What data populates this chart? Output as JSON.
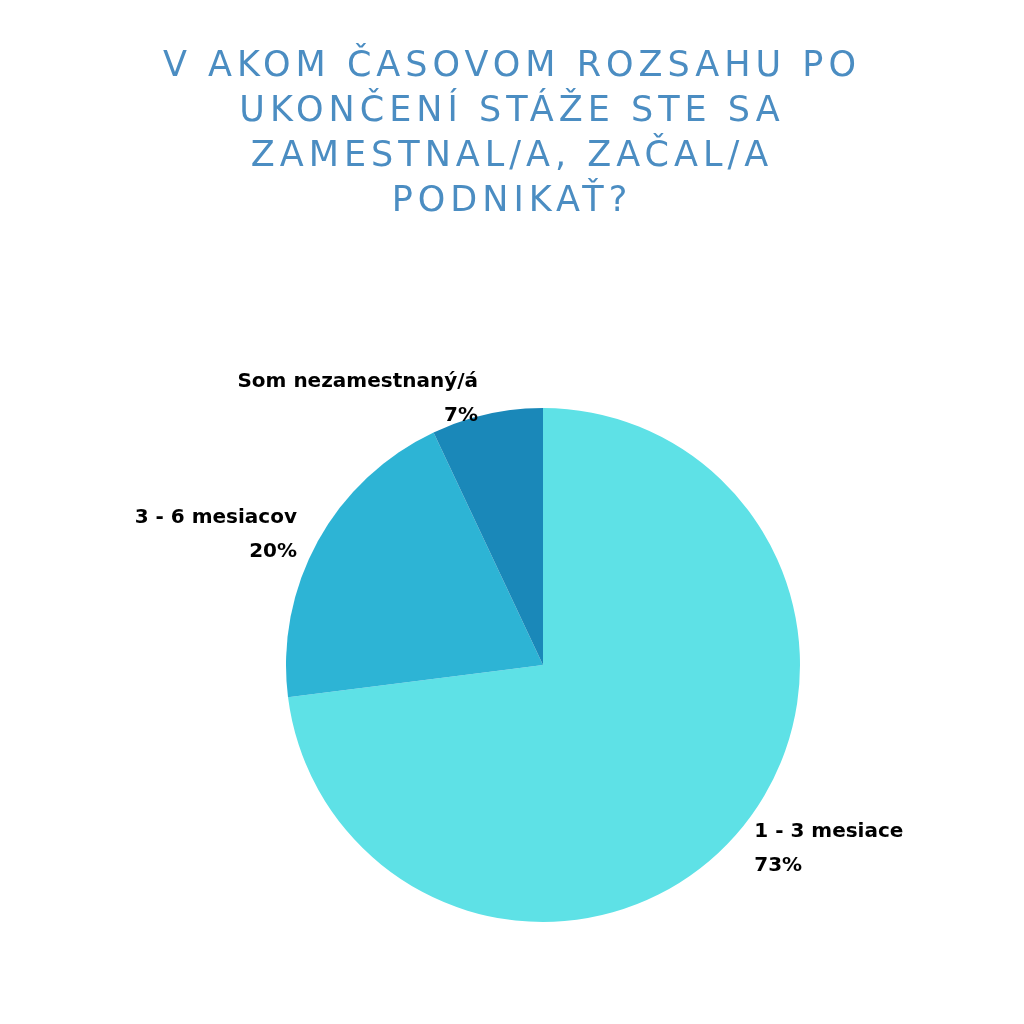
{
  "chart_data": {
    "type": "pie",
    "title": "V AKOM ČASOVOM ROZSAHU PO UKONČENÍ STÁŽE STE SA ZAMESTNAL/A, ZAČAL/A PODNIKAŤ?",
    "categories": [
      "1 - 3 mesiace",
      "3 - 6 mesiacov",
      "Som nezamestnaný/á"
    ],
    "values": [
      73,
      20,
      7
    ],
    "value_labels": [
      "73%",
      "20%",
      "7%"
    ],
    "colors": [
      "#5ee1e6",
      "#2db4d5",
      "#1a88b9"
    ],
    "legend": false
  }
}
